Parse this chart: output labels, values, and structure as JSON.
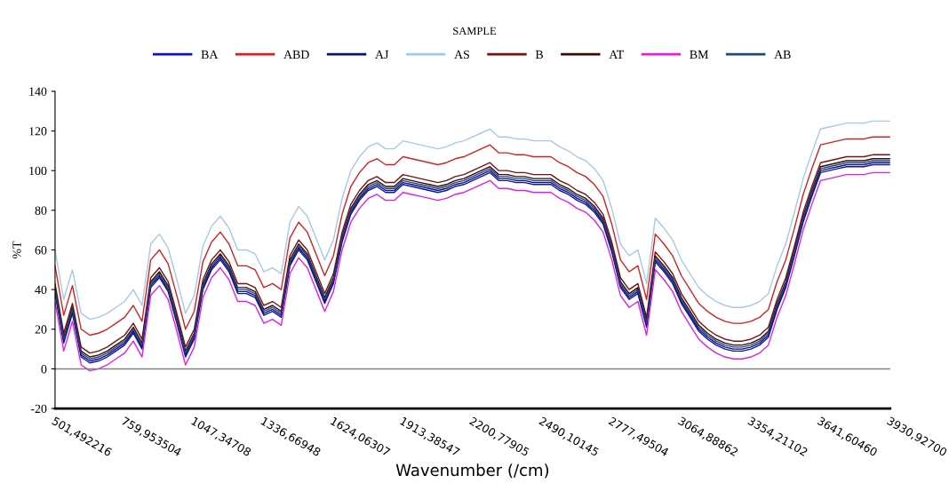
{
  "chart_data": {
    "type": "line",
    "title": "SAMPLE",
    "xlabel": "Wavenumber (/cm)",
    "ylabel": "%T",
    "categories": [
      "501,492216",
      null,
      null,
      null,
      null,
      null,
      null,
      null,
      "759,953504",
      null,
      null,
      null,
      null,
      null,
      null,
      null,
      "1047,34708",
      null,
      null,
      null,
      null,
      null,
      null,
      null,
      "1336,66948",
      null,
      null,
      null,
      null,
      null,
      null,
      null,
      "1624,06307",
      null,
      null,
      null,
      null,
      null,
      null,
      null,
      "1913,38547",
      null,
      null,
      null,
      null,
      null,
      null,
      null,
      "2200,77905",
      null,
      null,
      null,
      null,
      null,
      null,
      null,
      "2490,10145",
      null,
      null,
      null,
      null,
      null,
      null,
      null,
      "2777,49504",
      null,
      null,
      null,
      null,
      null,
      null,
      null,
      "3064,88862",
      null,
      null,
      null,
      null,
      null,
      null,
      null,
      "3354,21102",
      null,
      null,
      null,
      null,
      null,
      null,
      null,
      "3641,60460",
      null,
      null,
      null,
      null,
      null,
      null,
      null,
      "3930,92700"
    ],
    "series": [
      {
        "name": "BA",
        "color": "#1010c0",
        "values": [
          38,
          13,
          28,
          6,
          3,
          4,
          6,
          9,
          12,
          18,
          10,
          41,
          46,
          39,
          23,
          6,
          15,
          40,
          50,
          55,
          49,
          38,
          38,
          36,
          27,
          29,
          26,
          52,
          60,
          55,
          44,
          33,
          43,
          64,
          78,
          85,
          90,
          92,
          89,
          89,
          93,
          92,
          91,
          90,
          89,
          90,
          92,
          93,
          95,
          97,
          99,
          95,
          95,
          94,
          94,
          93,
          93,
          93,
          90,
          88,
          85,
          83,
          79,
          73,
          59,
          41,
          35,
          38,
          21,
          54,
          49,
          43,
          33,
          26,
          19,
          15,
          12,
          10,
          9,
          9,
          10,
          12,
          16,
          30,
          41,
          57,
          74,
          87,
          99,
          100,
          101,
          102,
          102,
          102,
          103,
          103,
          103
        ]
      },
      {
        "name": "ABD",
        "color": "#d42020",
        "values": [
          52,
          27,
          42,
          20,
          17,
          18,
          20,
          23,
          26,
          32,
          24,
          55,
          60,
          53,
          37,
          20,
          29,
          54,
          64,
          69,
          63,
          52,
          52,
          50,
          41,
          43,
          40,
          66,
          74,
          69,
          58,
          47,
          57,
          78,
          92,
          99,
          104,
          106,
          103,
          103,
          107,
          106,
          105,
          104,
          103,
          104,
          106,
          107,
          109,
          111,
          113,
          109,
          109,
          108,
          108,
          107,
          107,
          107,
          104,
          102,
          99,
          97,
          93,
          87,
          73,
          55,
          49,
          52,
          35,
          68,
          63,
          57,
          47,
          40,
          33,
          29,
          26,
          24,
          23,
          23,
          24,
          26,
          30,
          44,
          55,
          71,
          88,
          101,
          113,
          114,
          115,
          116,
          116,
          116,
          117,
          117,
          117
        ]
      },
      {
        "name": "AJ",
        "color": "#101070",
        "values": [
          39,
          14,
          29,
          7,
          4,
          5,
          7,
          10,
          13,
          19,
          11,
          42,
          47,
          40,
          24,
          7,
          16,
          41,
          51,
          56,
          50,
          39,
          39,
          37,
          28,
          30,
          27,
          53,
          61,
          56,
          45,
          34,
          44,
          65,
          79,
          86,
          91,
          93,
          90,
          90,
          94,
          93,
          92,
          91,
          90,
          91,
          93,
          94,
          96,
          98,
          100,
          96,
          96,
          95,
          95,
          94,
          94,
          94,
          91,
          89,
          86,
          84,
          80,
          74,
          60,
          42,
          36,
          39,
          22,
          55,
          50,
          44,
          34,
          27,
          20,
          16,
          13,
          11,
          10,
          10,
          11,
          13,
          17,
          31,
          42,
          58,
          75,
          88,
          100,
          101,
          102,
          103,
          103,
          103,
          104,
          104,
          104
        ]
      },
      {
        "name": "AS",
        "color": "#a8c8e8",
        "values": [
          60,
          35,
          50,
          28,
          25,
          26,
          28,
          31,
          34,
          40,
          32,
          63,
          68,
          61,
          45,
          28,
          37,
          62,
          72,
          77,
          71,
          60,
          60,
          58,
          49,
          51,
          48,
          74,
          82,
          77,
          66,
          55,
          65,
          86,
          100,
          107,
          112,
          114,
          111,
          111,
          115,
          114,
          113,
          112,
          111,
          112,
          114,
          115,
          117,
          119,
          121,
          117,
          117,
          116,
          116,
          115,
          115,
          115,
          112,
          110,
          107,
          105,
          101,
          95,
          81,
          63,
          57,
          60,
          43,
          76,
          71,
          65,
          55,
          48,
          41,
          37,
          34,
          32,
          31,
          31,
          32,
          34,
          38,
          52,
          63,
          79,
          96,
          109,
          121,
          122,
          123,
          124,
          124,
          124,
          125,
          125,
          125
        ]
      },
      {
        "name": "B",
        "color": "#7a1010",
        "values": [
          43,
          18,
          33,
          11,
          8,
          9,
          11,
          14,
          17,
          23,
          15,
          46,
          51,
          44,
          28,
          11,
          20,
          45,
          55,
          60,
          54,
          43,
          43,
          41,
          32,
          34,
          31,
          57,
          65,
          60,
          49,
          38,
          48,
          69,
          83,
          90,
          95,
          97,
          94,
          94,
          98,
          97,
          96,
          95,
          94,
          95,
          97,
          98,
          100,
          102,
          104,
          100,
          100,
          99,
          99,
          98,
          98,
          98,
          95,
          93,
          90,
          88,
          84,
          78,
          64,
          46,
          40,
          43,
          26,
          59,
          54,
          48,
          38,
          31,
          24,
          20,
          17,
          15,
          14,
          14,
          15,
          17,
          21,
          35,
          46,
          62,
          79,
          92,
          104,
          105,
          106,
          107,
          107,
          107,
          108,
          108,
          108
        ]
      },
      {
        "name": "AT",
        "color": "#3a0808",
        "values": [
          41,
          16,
          31,
          9,
          6,
          7,
          9,
          12,
          15,
          21,
          13,
          44,
          49,
          42,
          26,
          9,
          18,
          43,
          53,
          58,
          52,
          41,
          41,
          39,
          30,
          32,
          29,
          55,
          63,
          58,
          47,
          36,
          46,
          67,
          81,
          88,
          93,
          95,
          92,
          92,
          96,
          95,
          94,
          93,
          92,
          93,
          95,
          96,
          98,
          100,
          102,
          98,
          98,
          97,
          97,
          96,
          96,
          96,
          93,
          91,
          88,
          86,
          82,
          76,
          62,
          44,
          38,
          41,
          24,
          57,
          52,
          46,
          36,
          29,
          22,
          18,
          15,
          13,
          12,
          12,
          13,
          15,
          19,
          33,
          44,
          60,
          77,
          90,
          102,
          103,
          104,
          105,
          105,
          105,
          106,
          106,
          106
        ]
      },
      {
        "name": "BM",
        "color": "#e020e0",
        "values": [
          34,
          9,
          24,
          2,
          -1,
          0,
          2,
          5,
          8,
          14,
          6,
          37,
          42,
          35,
          19,
          2,
          11,
          36,
          46,
          51,
          45,
          34,
          34,
          32,
          23,
          25,
          22,
          48,
          56,
          51,
          40,
          29,
          39,
          60,
          74,
          81,
          86,
          88,
          85,
          85,
          89,
          88,
          87,
          86,
          85,
          86,
          88,
          89,
          91,
          93,
          95,
          91,
          91,
          90,
          90,
          89,
          89,
          89,
          86,
          84,
          81,
          79,
          75,
          69,
          55,
          37,
          31,
          34,
          17,
          50,
          45,
          39,
          29,
          22,
          15,
          11,
          8,
          6,
          5,
          5,
          6,
          8,
          12,
          26,
          37,
          53,
          70,
          83,
          95,
          96,
          97,
          98,
          98,
          98,
          99,
          99,
          99
        ]
      },
      {
        "name": "AB",
        "color": "#1a4a7a",
        "values": [
          40,
          15,
          30,
          8,
          5,
          6,
          8,
          11,
          14,
          20,
          12,
          43,
          48,
          41,
          25,
          8,
          17,
          42,
          52,
          57,
          51,
          40,
          40,
          38,
          29,
          31,
          28,
          54,
          62,
          57,
          46,
          35,
          45,
          66,
          80,
          87,
          92,
          94,
          91,
          91,
          95,
          94,
          93,
          92,
          91,
          92,
          94,
          95,
          97,
          99,
          101,
          97,
          97,
          96,
          96,
          95,
          95,
          95,
          92,
          90,
          87,
          85,
          81,
          75,
          61,
          43,
          37,
          40,
          23,
          56,
          51,
          45,
          35,
          28,
          21,
          17,
          14,
          12,
          11,
          11,
          12,
          14,
          18,
          32,
          43,
          59,
          76,
          89,
          101,
          102,
          103,
          104,
          104,
          104,
          105,
          105,
          105
        ]
      }
    ],
    "ylim": [
      -20,
      140
    ],
    "yticks": [
      -20,
      0,
      20,
      40,
      60,
      80,
      100,
      120,
      140
    ],
    "ref_lines": [
      {
        "axis": "y",
        "value": 0,
        "color": "#808080"
      }
    ],
    "grid": false,
    "legend": "top",
    "marker": "none",
    "line_style": "solid"
  }
}
